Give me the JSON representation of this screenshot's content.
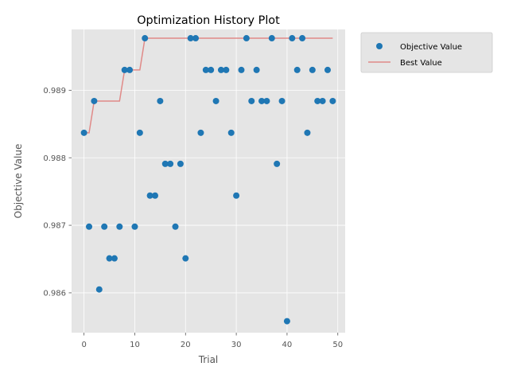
{
  "chart_data": {
    "type": "scatter",
    "title": "Optimization History Plot",
    "xlabel": "Trial",
    "ylabel": "Objective Value",
    "xlim": [
      -2.45,
      51.45
    ],
    "ylim": [
      0.98541,
      0.9899
    ],
    "xticks": [
      0,
      10,
      20,
      30,
      40,
      50
    ],
    "yticks": [
      0.986,
      0.987,
      0.988,
      0.989
    ],
    "ytick_labels": [
      "0.986",
      "0.987",
      "0.988",
      "0.989"
    ],
    "grid": true,
    "legend_position": "outside-top-right",
    "series": [
      {
        "name": "Objective Value",
        "kind": "scatter",
        "color": "#1f77b4",
        "x": [
          0,
          1,
          2,
          3,
          4,
          5,
          6,
          7,
          8,
          9,
          10,
          11,
          12,
          13,
          14,
          15,
          16,
          17,
          18,
          19,
          20,
          21,
          22,
          23,
          24,
          25,
          26,
          27,
          28,
          29,
          30,
          31,
          32,
          33,
          34,
          35,
          36,
          37,
          38,
          39,
          40,
          41,
          42,
          43,
          44,
          45,
          46,
          47,
          48,
          49
        ],
        "y": [
          0.98837,
          0.98698,
          0.98884,
          0.98605,
          0.98698,
          0.98651,
          0.98651,
          0.98698,
          0.9893,
          0.9893,
          0.98698,
          0.98837,
          0.98977,
          0.98744,
          0.98744,
          0.98884,
          0.98791,
          0.98791,
          0.98698,
          0.98791,
          0.98651,
          0.98977,
          0.98977,
          0.98837,
          0.9893,
          0.9893,
          0.98884,
          0.9893,
          0.9893,
          0.98837,
          0.98744,
          0.9893,
          0.98977,
          0.98884,
          0.9893,
          0.98884,
          0.98884,
          0.98977,
          0.98791,
          0.98884,
          0.98558,
          0.98977,
          0.9893,
          0.98977,
          0.98837,
          0.9893,
          0.98884,
          0.98884,
          0.9893,
          0.98884
        ]
      },
      {
        "name": "Best Value",
        "kind": "step-line",
        "color": "#e08a88",
        "x": [
          0,
          1,
          2,
          3,
          4,
          5,
          6,
          7,
          8,
          9,
          10,
          11,
          12,
          13,
          14,
          15,
          16,
          17,
          18,
          19,
          20,
          21,
          22,
          23,
          24,
          25,
          26,
          27,
          28,
          29,
          30,
          31,
          32,
          33,
          34,
          35,
          36,
          37,
          38,
          39,
          40,
          41,
          42,
          43,
          44,
          45,
          46,
          47,
          48,
          49
        ],
        "y": [
          0.98837,
          0.98837,
          0.98884,
          0.98884,
          0.98884,
          0.98884,
          0.98884,
          0.98884,
          0.9893,
          0.9893,
          0.9893,
          0.9893,
          0.98977,
          0.98977,
          0.98977,
          0.98977,
          0.98977,
          0.98977,
          0.98977,
          0.98977,
          0.98977,
          0.98977,
          0.98977,
          0.98977,
          0.98977,
          0.98977,
          0.98977,
          0.98977,
          0.98977,
          0.98977,
          0.98977,
          0.98977,
          0.98977,
          0.98977,
          0.98977,
          0.98977,
          0.98977,
          0.98977,
          0.98977,
          0.98977,
          0.98977,
          0.98977,
          0.98977,
          0.98977,
          0.98977,
          0.98977,
          0.98977,
          0.98977,
          0.98977,
          0.98977
        ]
      }
    ],
    "colors": {
      "plot_bg": "#e5e5e5",
      "grid": "#ffffff",
      "text": "#555555"
    }
  }
}
